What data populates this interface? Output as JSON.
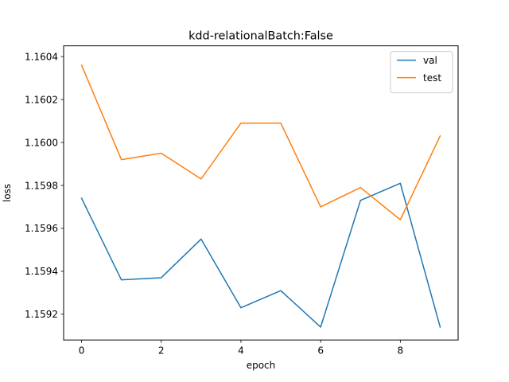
{
  "chart_data": {
    "type": "line",
    "title": "kdd-relationalBatch:False",
    "xlabel": "epoch",
    "ylabel": "loss",
    "x": [
      0,
      1,
      2,
      3,
      4,
      5,
      6,
      7,
      8,
      9
    ],
    "xlim": [
      -0.45,
      9.45
    ],
    "ylim": [
      1.15908,
      1.16045
    ],
    "xticks": [
      0,
      2,
      4,
      6,
      8
    ],
    "xtick_labels": [
      "0",
      "2",
      "4",
      "6",
      "8"
    ],
    "yticks": [
      1.1592,
      1.1594,
      1.1596,
      1.1598,
      1.16,
      1.1602,
      1.1604
    ],
    "ytick_labels": [
      "1.1592",
      "1.1594",
      "1.1596",
      "1.1598",
      "1.1600",
      "1.1602",
      "1.1604"
    ],
    "grid": false,
    "legend_position": "top-right",
    "series": [
      {
        "name": "val",
        "color": "#1f77b4",
        "values": [
          1.15974,
          1.15936,
          1.15937,
          1.15955,
          1.15923,
          1.15931,
          1.15914,
          1.15973,
          1.15981,
          1.15914
        ]
      },
      {
        "name": "test",
        "color": "#ff7f0e",
        "values": [
          1.16036,
          1.15992,
          1.15995,
          1.15983,
          1.16009,
          1.16009,
          1.1597,
          1.15979,
          1.15964,
          1.16003
        ]
      }
    ]
  }
}
